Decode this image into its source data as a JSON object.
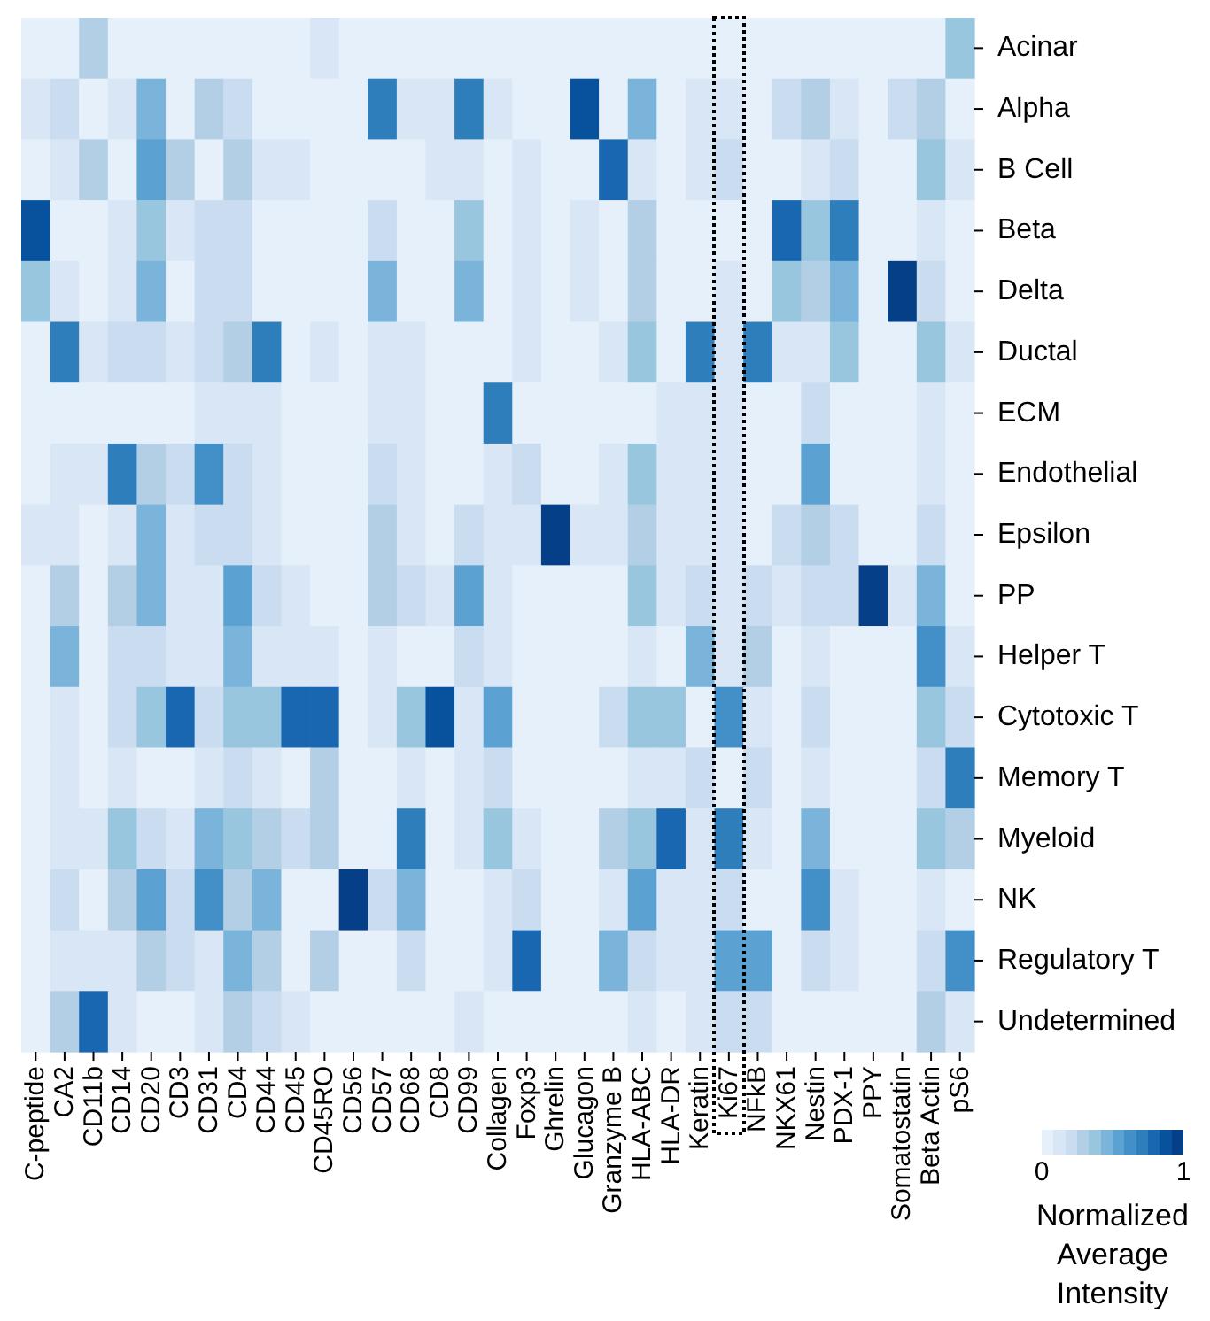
{
  "chart_data": {
    "type": "heatmap",
    "clabel": "Normalized Average Intensity",
    "categories": [
      "C-peptide",
      "CA2",
      "CD11b",
      "CD14",
      "CD20",
      "CD3",
      "CD31",
      "CD4",
      "CD44",
      "CD45",
      "CD45RO",
      "CD56",
      "CD57",
      "CD68",
      "CD8",
      "CD99",
      "Collagen",
      "Foxp3",
      "Ghrelin",
      "Glucagon",
      "Granzyme B",
      "HLA-ABC",
      "HLA-DR",
      "Keratin",
      "Ki67",
      "NFkB",
      "NKX61",
      "Nestin",
      "PDX-1",
      "PPY",
      "Somatostatin",
      "Beta Actin",
      "pS6"
    ],
    "y_categories": [
      "Acinar",
      "Alpha",
      "B Cell",
      "Beta",
      "Delta",
      "Ductal",
      "ECM",
      "Endothelial",
      "Epsilon",
      "PP",
      "Helper T",
      "Cytotoxic T",
      "Memory T",
      "Myeloid",
      "NK",
      "Regulatory T",
      "Undetermined"
    ],
    "cells": [
      [
        0,
        0,
        0.27,
        0,
        0,
        0,
        0,
        0,
        0,
        0,
        0.09,
        0,
        0,
        0,
        0,
        0,
        0,
        0,
        0,
        0,
        0,
        0,
        0,
        0,
        0,
        0,
        0,
        0,
        0,
        0,
        0,
        0,
        0.36
      ],
      [
        0.09,
        0.18,
        0,
        0.09,
        0.45,
        0,
        0.27,
        0.18,
        0,
        0,
        0,
        0,
        0.73,
        0.09,
        0.09,
        0.73,
        0.09,
        0,
        0,
        0.91,
        0,
        0.45,
        0,
        0.09,
        0.09,
        0,
        0.18,
        0.27,
        0.09,
        0,
        0.18,
        0.27,
        0
      ],
      [
        0,
        0.09,
        0.27,
        0,
        0.55,
        0.27,
        0,
        0.27,
        0.09,
        0.09,
        0,
        0,
        0,
        0,
        0.09,
        0.09,
        0,
        0.09,
        0,
        0,
        0.82,
        0.09,
        0,
        0.09,
        0.18,
        0,
        0,
        0.09,
        0.18,
        0,
        0,
        0.36,
        0.09
      ],
      [
        0.91,
        0,
        0,
        0.09,
        0.36,
        0.09,
        0.18,
        0.18,
        0,
        0,
        0,
        0,
        0.18,
        0,
        0,
        0.36,
        0,
        0.09,
        0,
        0.09,
        0,
        0.27,
        0,
        0,
        0,
        0,
        0.82,
        0.36,
        0.73,
        0,
        0,
        0.09,
        0
      ],
      [
        0.36,
        0.09,
        0,
        0.09,
        0.45,
        0,
        0.18,
        0.18,
        0,
        0,
        0,
        0,
        0.45,
        0,
        0,
        0.45,
        0,
        0.09,
        0,
        0.09,
        0,
        0.27,
        0,
        0,
        0.09,
        0,
        0.36,
        0.27,
        0.45,
        0,
        1,
        0.18,
        0
      ],
      [
        0,
        0.73,
        0.09,
        0.18,
        0.18,
        0.09,
        0.18,
        0.27,
        0.73,
        0,
        0.09,
        0,
        0.09,
        0.09,
        0,
        0,
        0,
        0.09,
        0,
        0,
        0.09,
        0.36,
        0,
        0.73,
        0.09,
        0.73,
        0.09,
        0.09,
        0.36,
        0,
        0,
        0.36,
        0.09
      ],
      [
        0,
        0,
        0,
        0,
        0,
        0,
        0.09,
        0.09,
        0.09,
        0,
        0,
        0,
        0.09,
        0.09,
        0,
        0,
        0.73,
        0,
        0,
        0,
        0,
        0,
        0.09,
        0.09,
        0.09,
        0,
        0,
        0.18,
        0,
        0,
        0,
        0.09,
        0
      ],
      [
        0,
        0.09,
        0.09,
        0.73,
        0.27,
        0.18,
        0.64,
        0.18,
        0.09,
        0,
        0,
        0,
        0.18,
        0.09,
        0,
        0,
        0.09,
        0.18,
        0,
        0,
        0.09,
        0.36,
        0.09,
        0.09,
        0.09,
        0,
        0,
        0.55,
        0,
        0,
        0,
        0.09,
        0
      ],
      [
        0.09,
        0.09,
        0,
        0.09,
        0.45,
        0.09,
        0.18,
        0.18,
        0.09,
        0,
        0,
        0,
        0.27,
        0.09,
        0,
        0.18,
        0.09,
        0.09,
        1,
        0.09,
        0.09,
        0.27,
        0.09,
        0.09,
        0.09,
        0,
        0.18,
        0.27,
        0.18,
        0,
        0,
        0.18,
        0
      ],
      [
        0,
        0.27,
        0,
        0.27,
        0.45,
        0.09,
        0.09,
        0.55,
        0.18,
        0.09,
        0,
        0,
        0.27,
        0.18,
        0.09,
        0.55,
        0.09,
        0,
        0,
        0,
        0,
        0.36,
        0.09,
        0.18,
        0.09,
        0.18,
        0.09,
        0.18,
        0.18,
        1,
        0.09,
        0.45,
        0
      ],
      [
        0,
        0.45,
        0,
        0.18,
        0.18,
        0.09,
        0.09,
        0.45,
        0.09,
        0.09,
        0.09,
        0,
        0.09,
        0,
        0,
        0.18,
        0.09,
        0,
        0,
        0,
        0,
        0.09,
        0,
        0.45,
        0.09,
        0.27,
        0,
        0.09,
        0,
        0,
        0,
        0.64,
        0.09
      ],
      [
        0,
        0.09,
        0,
        0.18,
        0.36,
        0.82,
        0.18,
        0.36,
        0.36,
        0.82,
        0.82,
        0,
        0.09,
        0.36,
        0.91,
        0.09,
        0.55,
        0,
        0,
        0,
        0.18,
        0.36,
        0.36,
        0,
        0.64,
        0.09,
        0,
        0.18,
        0,
        0,
        0,
        0.36,
        0.18
      ],
      [
        0,
        0.09,
        0,
        0.09,
        0,
        0,
        0.09,
        0.18,
        0.09,
        0,
        0.27,
        0,
        0,
        0.09,
        0,
        0.09,
        0.18,
        0,
        0,
        0,
        0,
        0.09,
        0.09,
        0.18,
        0,
        0.18,
        0,
        0.09,
        0,
        0,
        0,
        0.18,
        0.73
      ],
      [
        0,
        0.09,
        0.09,
        0.36,
        0.18,
        0.09,
        0.45,
        0.36,
        0.27,
        0.18,
        0.27,
        0,
        0,
        0.73,
        0,
        0.09,
        0.36,
        0.09,
        0,
        0,
        0.27,
        0.36,
        0.82,
        0.09,
        0.73,
        0.09,
        0,
        0.45,
        0,
        0,
        0,
        0.36,
        0.27
      ],
      [
        0,
        0.18,
        0,
        0.27,
        0.55,
        0.18,
        0.64,
        0.27,
        0.45,
        0,
        0,
        1,
        0.18,
        0.45,
        0,
        0,
        0.09,
        0.18,
        0,
        0,
        0.09,
        0.55,
        0.09,
        0.09,
        0.18,
        0,
        0,
        0.64,
        0.09,
        0,
        0,
        0.09,
        0
      ],
      [
        0,
        0.09,
        0.09,
        0.09,
        0.27,
        0.18,
        0.09,
        0.45,
        0.27,
        0,
        0.27,
        0,
        0,
        0.18,
        0,
        0,
        0.09,
        0.82,
        0,
        0,
        0.45,
        0.18,
        0.09,
        0.09,
        0.55,
        0.55,
        0,
        0.18,
        0.09,
        0,
        0,
        0.18,
        0.64
      ],
      [
        0,
        0.27,
        0.82,
        0.09,
        0,
        0,
        0.09,
        0.27,
        0.18,
        0.09,
        0,
        0,
        0,
        0,
        0,
        0.09,
        0,
        0,
        0,
        0,
        0,
        0.09,
        0,
        0.09,
        0.18,
        0.18,
        0,
        0,
        0,
        0,
        0,
        0.27,
        0.09
      ]
    ],
    "clim": [
      0,
      1
    ],
    "cticks": [
      0,
      1
    ]
  }
}
